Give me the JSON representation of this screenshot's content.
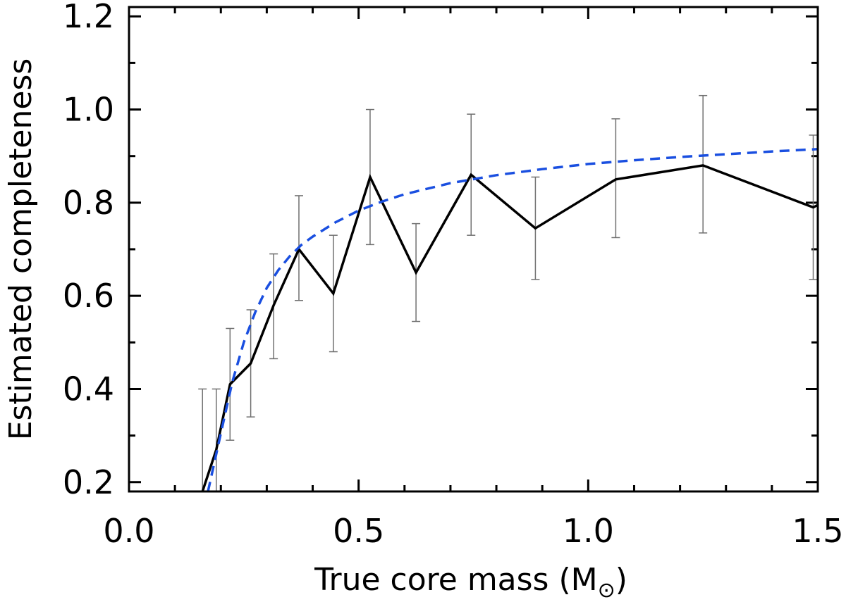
{
  "chart_data": {
    "type": "line",
    "title": "",
    "xlabel_prefix": "True core mass (M",
    "xlabel_subscript": "⊙",
    "xlabel_suffix": ")",
    "ylabel": "Estimated completeness",
    "xlim": [
      0.0,
      1.5
    ],
    "ylim": [
      0.18,
      1.22
    ],
    "xticks": [
      0.0,
      0.5,
      1.0,
      1.5
    ],
    "xtick_labels": [
      "0.0",
      "0.5",
      "1.0",
      "1.5"
    ],
    "yticks": [
      0.2,
      0.4,
      0.6,
      0.8,
      1.0,
      1.2
    ],
    "ytick_labels": [
      "0.2",
      "0.4",
      "0.6",
      "0.8",
      "1.0",
      "1.2"
    ],
    "x_minor_step": 0.1,
    "y_minor_step": 0.1,
    "grid": false,
    "series": [
      {
        "name": "Estimated completeness",
        "style": "solid",
        "color": "#000000",
        "x": [
          0.16,
          0.19,
          0.22,
          0.265,
          0.315,
          0.37,
          0.445,
          0.525,
          0.625,
          0.745,
          0.885,
          1.06,
          1.25,
          1.49,
          1.5
        ],
        "y": [
          0.18,
          0.27,
          0.41,
          0.455,
          0.58,
          0.7,
          0.605,
          0.855,
          0.65,
          0.86,
          0.745,
          0.85,
          0.88,
          0.79,
          0.795
        ],
        "error_x": [
          0.16,
          0.19,
          0.22,
          0.265,
          0.315,
          0.37,
          0.445,
          0.525,
          0.625,
          0.745,
          0.885,
          1.06,
          1.25,
          1.49
        ],
        "error_low": [
          0.18,
          0.18,
          0.29,
          0.34,
          0.465,
          0.59,
          0.48,
          0.71,
          0.545,
          0.73,
          0.635,
          0.725,
          0.735,
          0.635
        ],
        "error_high": [
          0.4,
          0.4,
          0.53,
          0.57,
          0.69,
          0.815,
          0.73,
          1.0,
          0.755,
          0.99,
          0.855,
          0.98,
          1.03,
          0.945
        ],
        "error_color": "#707070"
      },
      {
        "name": "Model fit",
        "style": "dashed",
        "color": "#1a4fe0",
        "x": [
          0.172,
          0.2,
          0.225,
          0.25,
          0.275,
          0.3,
          0.325,
          0.35,
          0.375,
          0.4,
          0.45,
          0.5,
          0.55,
          0.6,
          0.7,
          0.8,
          0.9,
          1.0,
          1.1,
          1.2,
          1.3,
          1.4,
          1.5
        ],
        "y": [
          0.18,
          0.305,
          0.415,
          0.5,
          0.565,
          0.617,
          0.655,
          0.685,
          0.709,
          0.727,
          0.758,
          0.783,
          0.802,
          0.818,
          0.842,
          0.859,
          0.872,
          0.883,
          0.891,
          0.898,
          0.904,
          0.91,
          0.915
        ]
      }
    ]
  }
}
